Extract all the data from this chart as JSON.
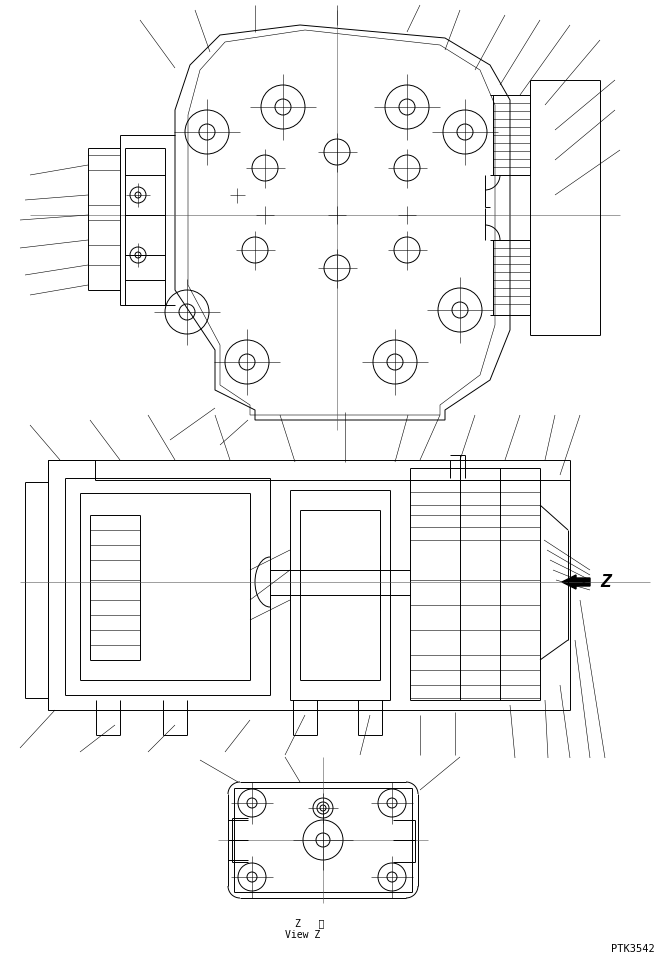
{
  "bg_color": "#ffffff",
  "line_color": "#000000",
  "lw": 0.7,
  "lw_thin": 0.4,
  "lw_thick": 1.0,
  "fig_width": 6.68,
  "fig_height": 9.64,
  "dpi": 100,
  "label_code": "PTK3542",
  "view_label_z": "Z   視",
  "view_label_view": "View Z"
}
